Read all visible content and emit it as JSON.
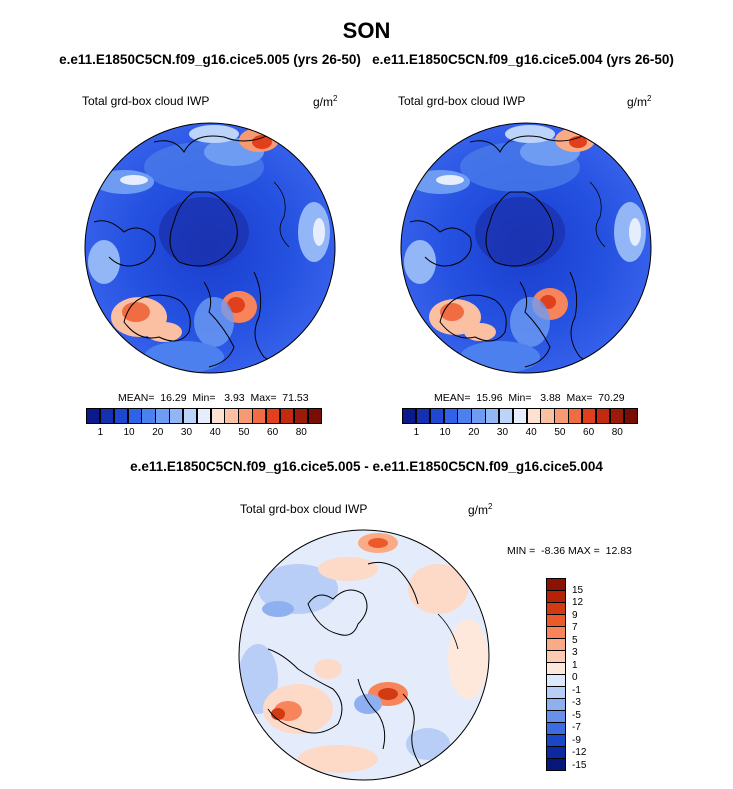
{
  "figure": {
    "title": "SON",
    "subtitle_left": "e.e11.E1850C5CN.f09_g16.cice5.005 (yrs 26-50)",
    "subtitle_right": "e.e11.E1850C5CN.f09_g16.cice5.004 (yrs 26-50)",
    "diff_title": "e.e11.E1850C5CN.f09_g16.cice5.005 - e.e11.E1850C5CN.f09_g16.cice5.004"
  },
  "chart_data": [
    {
      "type": "heatmap",
      "projection": "north polar stereographic",
      "variable": "Total grd-box cloud IWP",
      "units": "g/m",
      "units_exp": "2",
      "stats": {
        "mean": "16.29",
        "min": "3.93",
        "max": "71.53"
      },
      "stats_text": "MEAN=  16.29  Min=   3.93  Max=  71.53",
      "colorbar_ticks": [
        "1",
        "10",
        "20",
        "30",
        "40",
        "50",
        "60",
        "80"
      ],
      "colorbar_colors": [
        "#0a1a8c",
        "#1530b0",
        "#1f48d2",
        "#2f62e6",
        "#4c80ee",
        "#6e9cf2",
        "#93b7f6",
        "#bcd3fa",
        "#e6eefe",
        "#fde2d2",
        "#fbbfa2",
        "#f79a72",
        "#f06c42",
        "#e0401c",
        "#c42a10",
        "#9c1a08",
        "#7a0e04"
      ]
    },
    {
      "type": "heatmap",
      "projection": "north polar stereographic",
      "variable": "Total grd-box cloud IWP",
      "units": "g/m",
      "units_exp": "2",
      "stats": {
        "mean": "15.96",
        "min": "3.88",
        "max": "70.29"
      },
      "stats_text": "MEAN=  15.96  Min=   3.88  Max=  70.29",
      "colorbar_ticks": [
        "1",
        "10",
        "20",
        "30",
        "40",
        "50",
        "60",
        "80"
      ],
      "colorbar_colors": [
        "#0a1a8c",
        "#1530b0",
        "#1f48d2",
        "#2f62e6",
        "#4c80ee",
        "#6e9cf2",
        "#93b7f6",
        "#bcd3fa",
        "#e6eefe",
        "#fde2d2",
        "#fbbfa2",
        "#f79a72",
        "#f06c42",
        "#e0401c",
        "#c42a10",
        "#9c1a08",
        "#7a0e04"
      ]
    },
    {
      "type": "heatmap",
      "projection": "north polar stereographic",
      "variable": "Total grd-box cloud IWP",
      "units": "g/m",
      "units_exp": "2",
      "stats": {
        "min": "-8.36",
        "max": "12.83"
      },
      "stats_text": "MIN =  -8.36 MAX =  12.83",
      "colorbar_ticks": [
        "15",
        "12",
        "9",
        "7",
        "5",
        "3",
        "1",
        "0",
        "-1",
        "-3",
        "-5",
        "-7",
        "-9",
        "-12",
        "-15"
      ],
      "colorbar_colors": [
        "#8c1204",
        "#b42208",
        "#d23a14",
        "#ec5a2a",
        "#f7845a",
        "#fbaa86",
        "#fdcbb2",
        "#fee8dc",
        "#dce8fc",
        "#b8cef6",
        "#8fb0f0",
        "#6690ea",
        "#3c6ce0",
        "#1c46c8",
        "#0c2aa0",
        "#06187a"
      ]
    }
  ]
}
